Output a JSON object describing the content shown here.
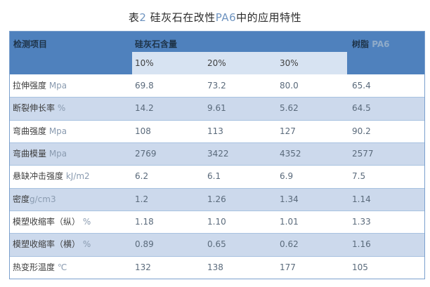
{
  "title": {
    "full_text": "表2 硅灰石在改性PA6中的应用特性",
    "parts": {
      "p0": "表",
      "p1": "2",
      "p2": " 硅灰石在改性",
      "p3": "PA6",
      "p4": "中的应用特性"
    }
  },
  "table": {
    "header": {
      "col_item": "检测项目",
      "col_content": "硅灰石含量",
      "col_resin_zh": "树脂 ",
      "col_resin_lat": "PA6",
      "subcols": {
        "c10": "10%",
        "c20": "20%",
        "c30": "30%"
      }
    },
    "rows": [
      {
        "label_zh": "拉伸强度",
        "label_unit": " Mpa",
        "v10": "69.8",
        "v20": "73.2",
        "v30": "80.0",
        "pa6": "65.4"
      },
      {
        "label_zh": "断裂伸长率",
        "label_unit": " %",
        "v10": "14.2",
        "v20": "9.61",
        "v30": "5.62",
        "pa6": "64.5"
      },
      {
        "label_zh": "弯曲强度",
        "label_unit": " Mpa",
        "v10": "108",
        "v20": "113",
        "v30": "127",
        "pa6": "90.2"
      },
      {
        "label_zh": "弯曲模量",
        "label_unit": " Mpa",
        "v10": "2769",
        "v20": "3422",
        "v30": "4352",
        "pa6": "2577"
      },
      {
        "label_zh": "悬缺冲击强度",
        "label_unit": " kJ/m2",
        "v10": "6.2",
        "v20": "6.1",
        "v30": "6.9",
        "pa6": "7.5"
      },
      {
        "label_zh": "密度",
        "label_unit": "g/cm3",
        "v10": "1.2",
        "v20": "1.26",
        "v30": "1.34",
        "pa6": "1.14"
      },
      {
        "label_zh": "模塑收缩率（纵）",
        "label_unit": " %",
        "v10": "1.18",
        "v20": "1.10",
        "v30": "1.01",
        "pa6": "1.33"
      },
      {
        "label_zh": "模塑收缩率（横）",
        "label_unit": " %",
        "v10": "0.89",
        "v20": "0.65",
        "v30": "0.62",
        "pa6": "1.16"
      },
      {
        "label_zh": "热变形温度",
        "label_unit": " ℃",
        "v10": "132",
        "v20": "138",
        "v30": "177",
        "pa6": "105"
      }
    ]
  },
  "chart_data": {
    "type": "table",
    "title": "表2 硅灰石在改性PA6中的应用特性",
    "columns": [
      "检测项目",
      "硅灰石含量 10%",
      "硅灰石含量 20%",
      "硅灰石含量 30%",
      "树脂 PA6"
    ],
    "rows": [
      [
        "拉伸强度 Mpa",
        69.8,
        73.2,
        80.0,
        65.4
      ],
      [
        "断裂伸长率 %",
        14.2,
        9.61,
        5.62,
        64.5
      ],
      [
        "弯曲强度 Mpa",
        108,
        113,
        127,
        90.2
      ],
      [
        "弯曲模量 Mpa",
        2769,
        3422,
        4352,
        2577
      ],
      [
        "悬缺冲击强度 kJ/m2",
        6.2,
        6.1,
        6.9,
        7.5
      ],
      [
        "密度g/cm3",
        1.2,
        1.26,
        1.34,
        1.14
      ],
      [
        "模塑收缩率（纵）%",
        1.18,
        1.1,
        1.01,
        1.33
      ],
      [
        "模塑收缩率（横）%",
        0.89,
        0.65,
        0.62,
        1.16
      ],
      [
        "热变形温度 ℃",
        132,
        138,
        177,
        105
      ]
    ]
  },
  "colors": {
    "header_bg": "#4f81bd",
    "subband_bg": "#d7e3f2",
    "zebra_bg": "#ccd9ec",
    "outer_border": "#7ba0cd",
    "row_separator": "#a8c2e0",
    "header_text": "#1e3348",
    "latin_accent": "#6f94c0"
  }
}
